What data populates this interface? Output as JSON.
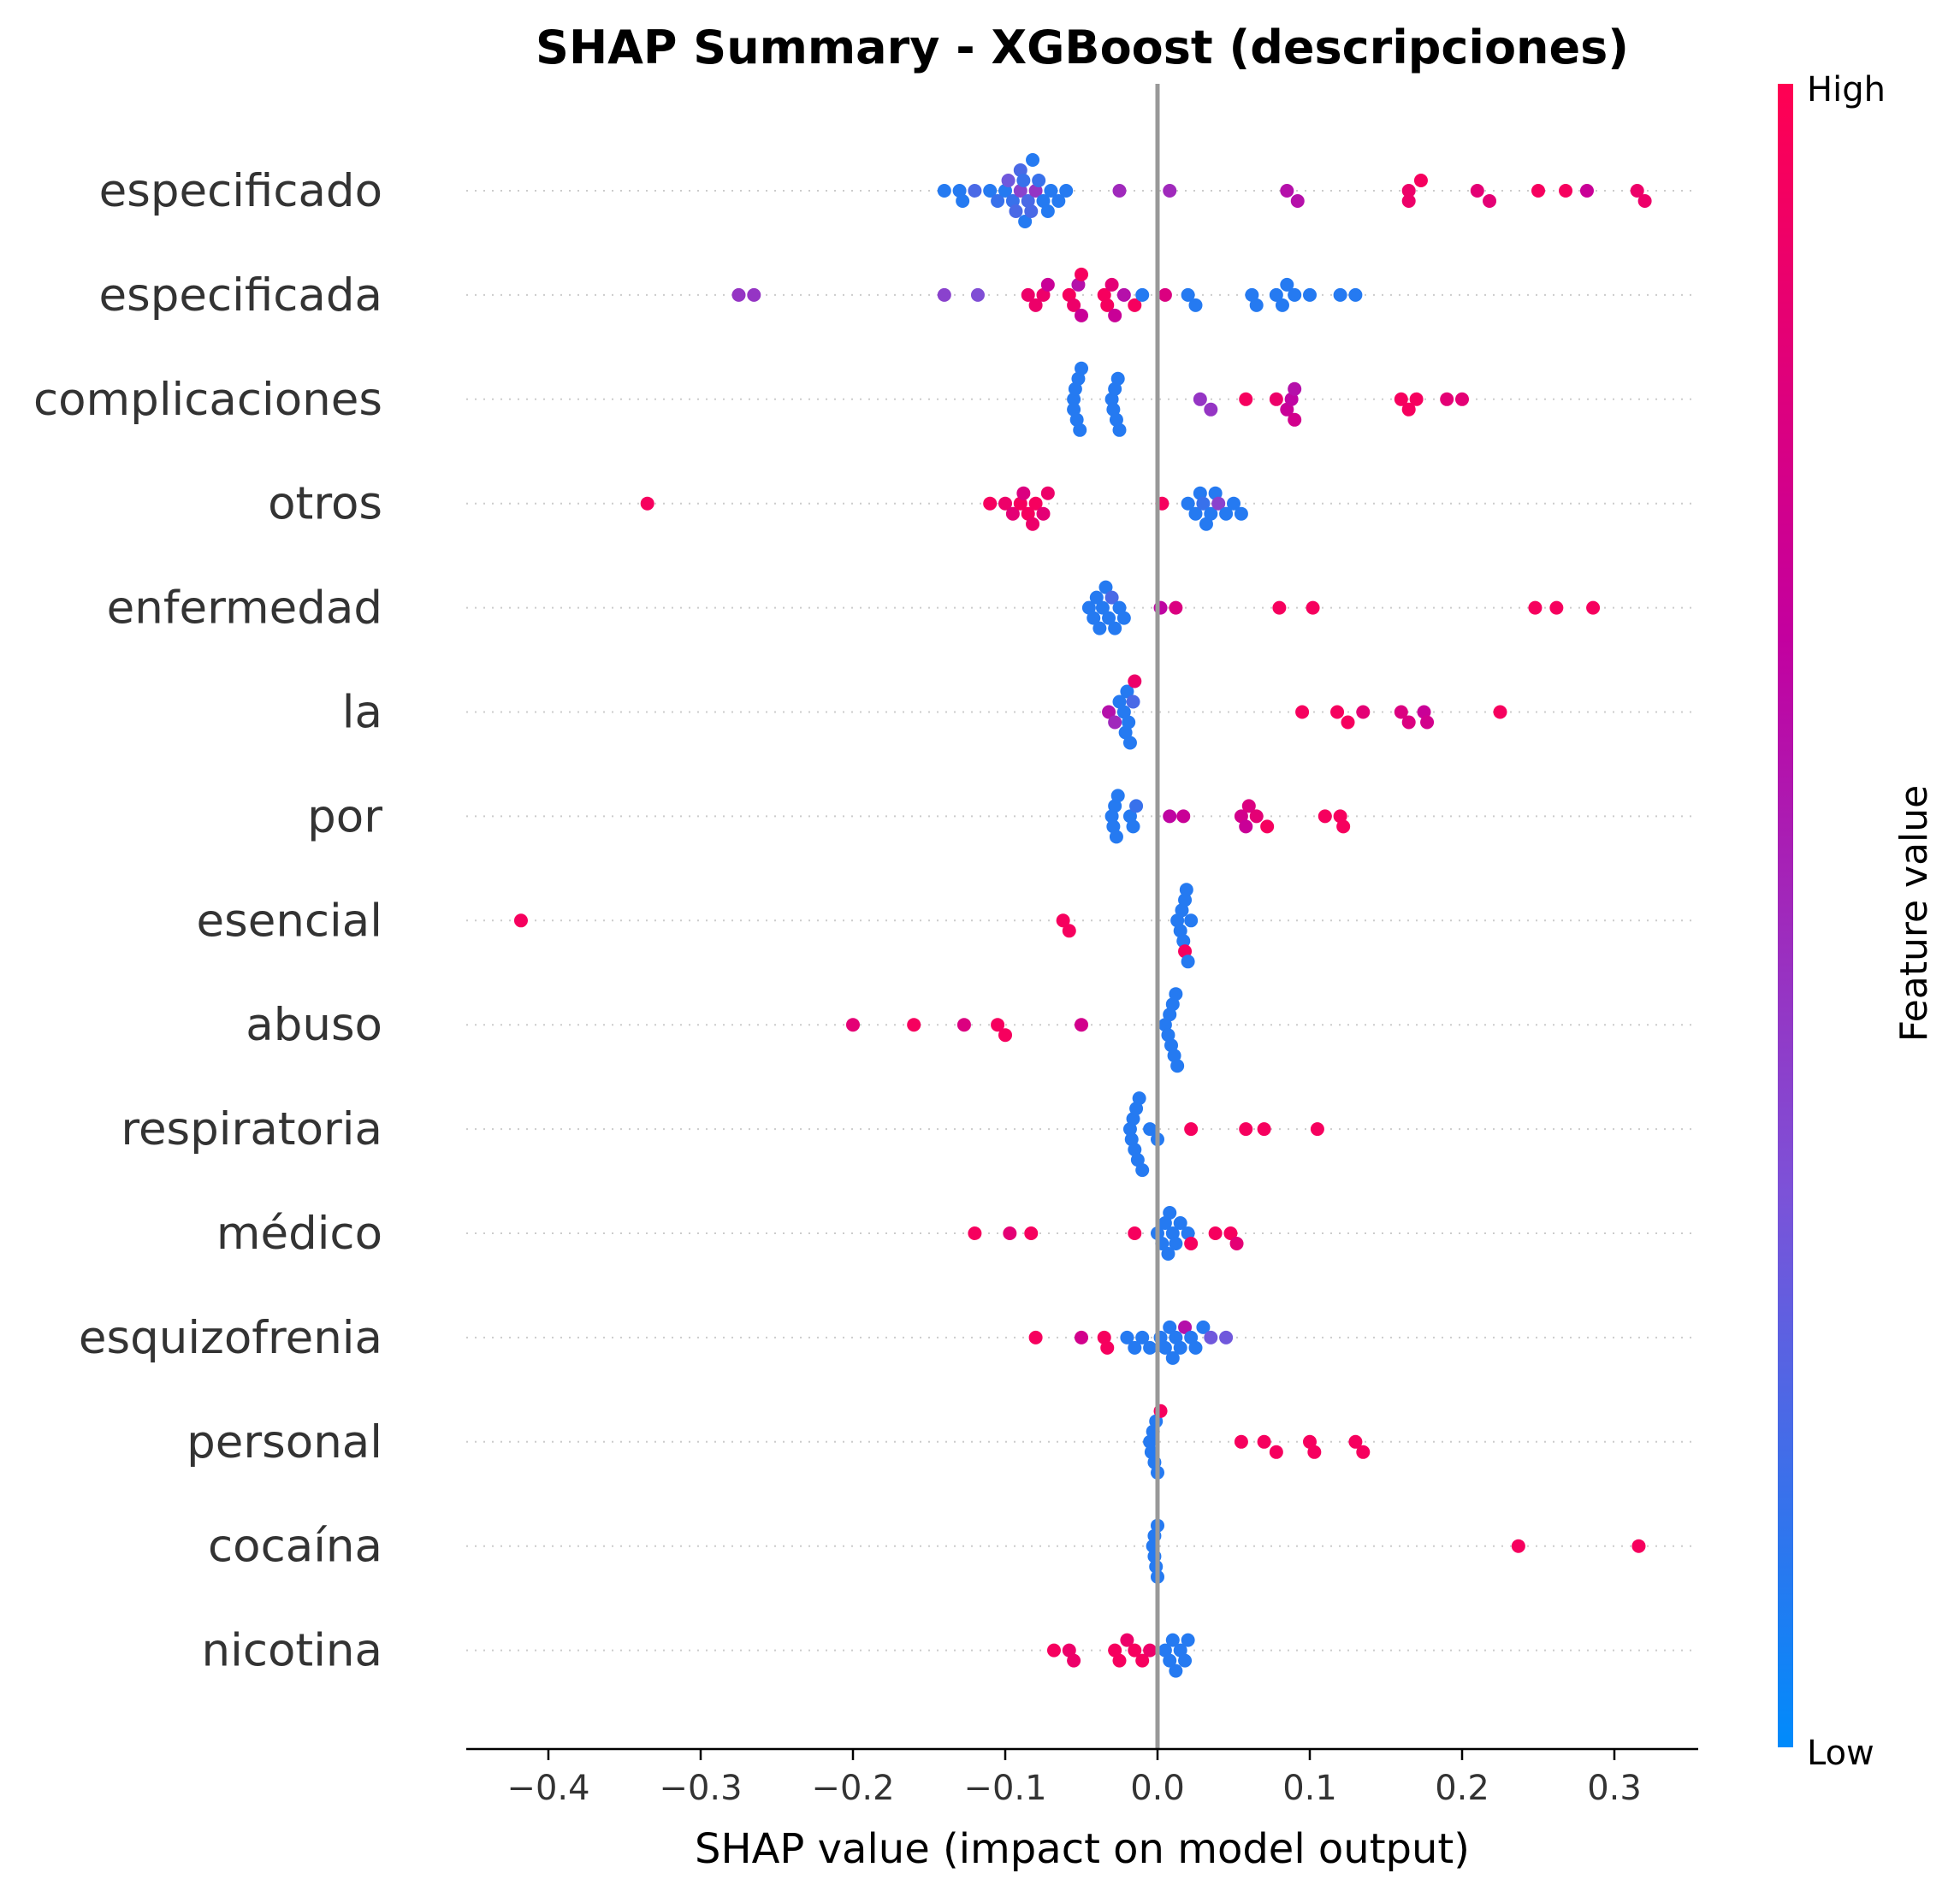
{
  "chart_data": {
    "type": "scatter",
    "title": "SHAP Summary - XGBoost (descripciones)",
    "xlabel": "SHAP value (impact on model output)",
    "xlim": [
      -0.455,
      0.355
    ],
    "xticks": [
      -0.4,
      -0.3,
      -0.2,
      -0.1,
      0.0,
      0.1,
      0.2,
      0.3
    ],
    "xtick_labels": [
      "−0.4",
      "−0.3",
      "−0.2",
      "−0.1",
      "0.0",
      "0.1",
      "0.2",
      "0.3"
    ],
    "zero_line": 0.0,
    "grid": false,
    "colorbar": {
      "label": "Feature value",
      "high_label": "High",
      "low_label": "Low",
      "colors": [
        "#008bfb",
        "#7c52d8",
        "#c3009f",
        "#ff0052"
      ]
    },
    "features": [
      {
        "name": "especificado",
        "points": [
          [
            -0.14,
            0.1
          ],
          [
            -0.13,
            0.1
          ],
          [
            -0.128,
            0.1
          ],
          [
            -0.12,
            0.2
          ],
          [
            -0.11,
            0.1
          ],
          [
            -0.105,
            0.15
          ],
          [
            -0.1,
            0.1
          ],
          [
            -0.098,
            0.3
          ],
          [
            -0.095,
            0.15
          ],
          [
            -0.093,
            0.2
          ],
          [
            -0.09,
            0.4
          ],
          [
            -0.09,
            0.2
          ],
          [
            -0.088,
            0.15
          ],
          [
            -0.087,
            0.1
          ],
          [
            -0.085,
            0.2
          ],
          [
            -0.083,
            0.2
          ],
          [
            -0.082,
            0.1
          ],
          [
            -0.08,
            0.45
          ],
          [
            -0.078,
            0.15
          ],
          [
            -0.075,
            0.1
          ],
          [
            -0.072,
            0.1
          ],
          [
            -0.07,
            0.1
          ],
          [
            -0.065,
            0.1
          ],
          [
            -0.06,
            0.1
          ],
          [
            -0.025,
            0.5
          ],
          [
            0.008,
            0.5
          ],
          [
            0.085,
            0.6
          ],
          [
            0.092,
            0.6
          ],
          [
            0.165,
            0.9
          ],
          [
            0.173,
            0.95
          ],
          [
            0.165,
            0.9
          ],
          [
            0.21,
            0.85
          ],
          [
            0.218,
            0.85
          ],
          [
            0.25,
            0.95
          ],
          [
            0.268,
            0.95
          ],
          [
            0.282,
            0.7
          ],
          [
            0.315,
            0.9
          ],
          [
            0.32,
            0.9
          ]
        ]
      },
      {
        "name": "especificada",
        "points": [
          [
            -0.275,
            0.45
          ],
          [
            -0.265,
            0.45
          ],
          [
            -0.14,
            0.4
          ],
          [
            -0.118,
            0.35
          ],
          [
            -0.085,
            0.9
          ],
          [
            -0.08,
            0.9
          ],
          [
            -0.075,
            0.9
          ],
          [
            -0.072,
            0.7
          ],
          [
            -0.058,
            0.95
          ],
          [
            -0.055,
            0.9
          ],
          [
            -0.052,
            0.6
          ],
          [
            -0.05,
            0.7
          ],
          [
            -0.05,
            0.95
          ],
          [
            -0.035,
            0.95
          ],
          [
            -0.033,
            0.95
          ],
          [
            -0.03,
            0.85
          ],
          [
            -0.028,
            0.7
          ],
          [
            -0.022,
            0.6
          ],
          [
            -0.015,
            0.95
          ],
          [
            -0.01,
            0.1
          ],
          [
            0.005,
            0.8
          ],
          [
            0.02,
            0.1
          ],
          [
            0.025,
            0.1
          ],
          [
            0.062,
            0.1
          ],
          [
            0.065,
            0.1
          ],
          [
            0.078,
            0.1
          ],
          [
            0.082,
            0.1
          ],
          [
            0.085,
            0.1
          ],
          [
            0.09,
            0.1
          ],
          [
            0.1,
            0.1
          ],
          [
            0.12,
            0.1
          ],
          [
            0.13,
            0.1
          ]
        ]
      },
      {
        "name": "complicaciones",
        "points": [
          [
            -0.055,
            0.1
          ],
          [
            -0.055,
            0.1
          ],
          [
            -0.054,
            0.1
          ],
          [
            -0.053,
            0.1
          ],
          [
            -0.052,
            0.1
          ],
          [
            -0.051,
            0.1
          ],
          [
            -0.05,
            0.1
          ],
          [
            -0.03,
            0.1
          ],
          [
            -0.029,
            0.1
          ],
          [
            -0.028,
            0.1
          ],
          [
            -0.027,
            0.1
          ],
          [
            -0.026,
            0.1
          ],
          [
            -0.025,
            0.1
          ],
          [
            0.028,
            0.45
          ],
          [
            0.035,
            0.45
          ],
          [
            0.058,
            0.95
          ],
          [
            0.078,
            0.9
          ],
          [
            0.085,
            0.7
          ],
          [
            0.088,
            0.65
          ],
          [
            0.09,
            0.6
          ],
          [
            0.09,
            0.75
          ],
          [
            0.16,
            0.95
          ],
          [
            0.165,
            0.95
          ],
          [
            0.17,
            0.95
          ],
          [
            0.19,
            0.85
          ],
          [
            0.2,
            0.85
          ]
        ]
      },
      {
        "name": "otros",
        "points": [
          [
            -0.335,
            0.95
          ],
          [
            -0.11,
            0.95
          ],
          [
            -0.1,
            0.9
          ],
          [
            -0.095,
            0.85
          ],
          [
            -0.09,
            0.95
          ],
          [
            -0.088,
            0.8
          ],
          [
            -0.085,
            0.95
          ],
          [
            -0.082,
            0.9
          ],
          [
            -0.08,
            0.95
          ],
          [
            -0.075,
            0.85
          ],
          [
            -0.072,
            0.9
          ],
          [
            0.003,
            0.95
          ],
          [
            0.02,
            0.1
          ],
          [
            0.025,
            0.1
          ],
          [
            0.028,
            0.1
          ],
          [
            0.03,
            0.15
          ],
          [
            0.032,
            0.1
          ],
          [
            0.035,
            0.1
          ],
          [
            0.038,
            0.1
          ],
          [
            0.04,
            0.4
          ],
          [
            0.045,
            0.1
          ],
          [
            0.05,
            0.1
          ],
          [
            0.055,
            0.1
          ]
        ]
      },
      {
        "name": "enfermedad",
        "points": [
          [
            -0.045,
            0.1
          ],
          [
            -0.042,
            0.1
          ],
          [
            -0.04,
            0.1
          ],
          [
            -0.038,
            0.1
          ],
          [
            -0.036,
            0.1
          ],
          [
            -0.034,
            0.1
          ],
          [
            -0.032,
            0.1
          ],
          [
            -0.03,
            0.2
          ],
          [
            -0.028,
            0.1
          ],
          [
            -0.025,
            0.1
          ],
          [
            -0.022,
            0.1
          ],
          [
            0.002,
            0.65
          ],
          [
            0.012,
            0.8
          ],
          [
            0.08,
            0.95
          ],
          [
            0.102,
            0.95
          ],
          [
            0.248,
            0.95
          ],
          [
            0.262,
            0.95
          ],
          [
            0.286,
            0.95
          ]
        ]
      },
      {
        "name": "la",
        "points": [
          [
            -0.032,
            0.6
          ],
          [
            -0.028,
            0.5
          ],
          [
            -0.025,
            0.1
          ],
          [
            -0.022,
            0.1
          ],
          [
            -0.021,
            0.1
          ],
          [
            -0.02,
            0.1
          ],
          [
            -0.019,
            0.1
          ],
          [
            -0.018,
            0.1
          ],
          [
            -0.016,
            0.2
          ],
          [
            -0.015,
            0.9
          ],
          [
            0.095,
            0.95
          ],
          [
            0.118,
            0.95
          ],
          [
            0.125,
            0.95
          ],
          [
            0.135,
            0.85
          ],
          [
            0.16,
            0.8
          ],
          [
            0.165,
            0.8
          ],
          [
            0.175,
            0.7
          ],
          [
            0.177,
            0.75
          ],
          [
            0.225,
            0.95
          ]
        ]
      },
      {
        "name": "por",
        "points": [
          [
            -0.03,
            0.1
          ],
          [
            -0.029,
            0.1
          ],
          [
            -0.028,
            0.1
          ],
          [
            -0.027,
            0.1
          ],
          [
            -0.026,
            0.1
          ],
          [
            -0.018,
            0.1
          ],
          [
            -0.016,
            0.1
          ],
          [
            -0.014,
            0.15
          ],
          [
            0.008,
            0.65
          ],
          [
            0.017,
            0.7
          ],
          [
            0.055,
            0.75
          ],
          [
            0.058,
            0.7
          ],
          [
            0.06,
            0.8
          ],
          [
            0.065,
            0.85
          ],
          [
            0.072,
            0.95
          ],
          [
            0.11,
            0.95
          ],
          [
            0.12,
            0.95
          ],
          [
            0.122,
            0.95
          ]
        ]
      },
      {
        "name": "esencial",
        "points": [
          [
            -0.418,
            0.95
          ],
          [
            -0.062,
            0.95
          ],
          [
            -0.058,
            0.95
          ],
          [
            0.013,
            0.1
          ],
          [
            0.015,
            0.1
          ],
          [
            0.016,
            0.1
          ],
          [
            0.017,
            0.1
          ],
          [
            0.018,
            0.1
          ],
          [
            0.019,
            0.1
          ],
          [
            0.02,
            0.1
          ],
          [
            0.022,
            0.1
          ],
          [
            0.018,
            0.95
          ]
        ]
      },
      {
        "name": "abuso",
        "points": [
          [
            -0.2,
            0.85
          ],
          [
            -0.16,
            0.95
          ],
          [
            -0.127,
            0.8
          ],
          [
            -0.105,
            0.95
          ],
          [
            -0.1,
            0.95
          ],
          [
            -0.05,
            0.75
          ],
          [
            0.005,
            0.1
          ],
          [
            0.007,
            0.1
          ],
          [
            0.008,
            0.1
          ],
          [
            0.009,
            0.1
          ],
          [
            0.01,
            0.1
          ],
          [
            0.011,
            0.1
          ],
          [
            0.012,
            0.1
          ],
          [
            0.013,
            0.1
          ]
        ]
      },
      {
        "name": "respiratoria",
        "points": [
          [
            -0.018,
            0.1
          ],
          [
            -0.017,
            0.1
          ],
          [
            -0.016,
            0.1
          ],
          [
            -0.015,
            0.1
          ],
          [
            -0.014,
            0.1
          ],
          [
            -0.013,
            0.1
          ],
          [
            -0.012,
            0.1
          ],
          [
            -0.01,
            0.1
          ],
          [
            -0.005,
            0.1
          ],
          [
            0.0,
            0.1
          ],
          [
            0.022,
            0.95
          ],
          [
            0.058,
            0.95
          ],
          [
            0.07,
            0.95
          ],
          [
            0.105,
            0.95
          ]
        ]
      },
      {
        "name": "médico",
        "points": [
          [
            -0.12,
            0.95
          ],
          [
            -0.097,
            0.85
          ],
          [
            -0.083,
            0.95
          ],
          [
            -0.015,
            0.95
          ],
          [
            0.0,
            0.1
          ],
          [
            0.003,
            0.1
          ],
          [
            0.005,
            0.1
          ],
          [
            0.007,
            0.1
          ],
          [
            0.008,
            0.1
          ],
          [
            0.01,
            0.1
          ],
          [
            0.012,
            0.1
          ],
          [
            0.015,
            0.1
          ],
          [
            0.02,
            0.1
          ],
          [
            0.022,
            0.95
          ],
          [
            0.038,
            0.95
          ],
          [
            0.048,
            0.95
          ],
          [
            0.052,
            0.85
          ]
        ]
      },
      {
        "name": "esquizofrenia",
        "points": [
          [
            -0.08,
            0.95
          ],
          [
            -0.05,
            0.75
          ],
          [
            -0.035,
            0.95
          ],
          [
            -0.033,
            0.95
          ],
          [
            -0.02,
            0.1
          ],
          [
            -0.015,
            0.1
          ],
          [
            -0.01,
            0.1
          ],
          [
            -0.005,
            0.1
          ],
          [
            0.002,
            0.1
          ],
          [
            0.005,
            0.1
          ],
          [
            0.008,
            0.1
          ],
          [
            0.01,
            0.1
          ],
          [
            0.012,
            0.1
          ],
          [
            0.015,
            0.1
          ],
          [
            0.018,
            0.6
          ],
          [
            0.022,
            0.1
          ],
          [
            0.025,
            0.1
          ],
          [
            0.03,
            0.1
          ],
          [
            0.035,
            0.3
          ],
          [
            0.045,
            0.3
          ]
        ]
      },
      {
        "name": "personal",
        "points": [
          [
            -0.005,
            0.1
          ],
          [
            -0.004,
            0.1
          ],
          [
            -0.003,
            0.1
          ],
          [
            -0.002,
            0.1
          ],
          [
            -0.001,
            0.1
          ],
          [
            0.0,
            0.1
          ],
          [
            0.002,
            0.95
          ],
          [
            0.055,
            0.95
          ],
          [
            0.07,
            0.95
          ],
          [
            0.078,
            0.95
          ],
          [
            0.1,
            0.95
          ],
          [
            0.103,
            0.95
          ],
          [
            0.13,
            0.95
          ],
          [
            0.135,
            0.95
          ]
        ]
      },
      {
        "name": "cocaína",
        "points": [
          [
            -0.003,
            0.1
          ],
          [
            -0.002,
            0.1
          ],
          [
            -0.002,
            0.1
          ],
          [
            -0.001,
            0.1
          ],
          [
            0.0,
            0.1
          ],
          [
            0.0,
            0.1
          ],
          [
            0.237,
            0.95
          ],
          [
            0.316,
            0.95
          ]
        ]
      },
      {
        "name": "nicotina",
        "points": [
          [
            -0.068,
            0.95
          ],
          [
            -0.058,
            0.9
          ],
          [
            -0.055,
            0.9
          ],
          [
            -0.028,
            0.95
          ],
          [
            -0.025,
            0.95
          ],
          [
            -0.02,
            0.9
          ],
          [
            -0.015,
            0.95
          ],
          [
            -0.01,
            0.95
          ],
          [
            -0.005,
            0.9
          ],
          [
            0.005,
            0.1
          ],
          [
            0.008,
            0.1
          ],
          [
            0.01,
            0.1
          ],
          [
            0.012,
            0.1
          ],
          [
            0.015,
            0.1
          ],
          [
            0.018,
            0.1
          ],
          [
            0.02,
            0.1
          ]
        ]
      }
    ]
  }
}
